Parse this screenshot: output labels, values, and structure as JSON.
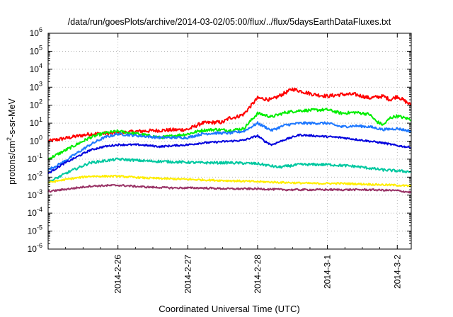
{
  "chart_data": {
    "type": "line",
    "title": "/data/run/goesPlots/archive/2014-03-02/05:00/flux/../flux/5daysEarthDataFluxes.txt",
    "xlabel": "Coordinated Universal Time (UTC)",
    "ylabel": {
      "base": "protons/cm",
      "sup": "2",
      "rest": "-s-sr-MeV"
    },
    "xlim": [
      0,
      5.2
    ],
    "ylim_exponents": [
      -6,
      6
    ],
    "y_scale": "log",
    "grid": true,
    "x_ticks": [
      {
        "value": 1,
        "label": "2014-2-26"
      },
      {
        "value": 2,
        "label": "2014-2-27"
      },
      {
        "value": 3,
        "label": "2014-2-28"
      },
      {
        "value": 4,
        "label": "2014-3-1"
      },
      {
        "value": 5,
        "label": "2014-3-2"
      }
    ],
    "y_ticks": [
      {
        "base": "10",
        "exp": "6",
        "value": 6
      },
      {
        "base": "10",
        "exp": "5",
        "value": 5
      },
      {
        "base": "10",
        "exp": "4",
        "value": 4
      },
      {
        "base": "10",
        "exp": "3",
        "value": 3
      },
      {
        "base": "10",
        "exp": "2",
        "value": 2
      },
      {
        "base": "10",
        "exp": "1",
        "value": 1
      },
      {
        "base": "10",
        "exp": "0",
        "value": 0
      },
      {
        "base": "10",
        "exp": "-1",
        "value": -1
      },
      {
        "base": "10",
        "exp": "-2",
        "value": -2
      },
      {
        "base": "10",
        "exp": "-3",
        "value": -3
      },
      {
        "base": "10",
        "exp": "-4",
        "value": -4
      },
      {
        "base": "10",
        "exp": "-5",
        "value": -5
      },
      {
        "base": "10",
        "exp": "-6",
        "value": -6
      }
    ],
    "series": [
      {
        "color": "#ff0000",
        "noise": 0.1,
        "x": [
          0,
          0.3,
          0.6,
          1.0,
          1.3,
          1.6,
          2.0,
          2.2,
          2.4,
          2.5,
          2.6,
          2.7,
          2.8,
          3.0,
          3.2,
          3.4,
          3.5,
          3.8,
          4.0,
          4.2,
          4.4,
          4.6,
          4.8,
          4.9,
          5.0,
          5.2
        ],
        "y": [
          0.0,
          0.2,
          0.4,
          0.45,
          0.55,
          0.6,
          0.65,
          1.0,
          1.05,
          1.05,
          1.3,
          1.35,
          1.5,
          2.4,
          2.3,
          2.7,
          2.9,
          2.6,
          2.5,
          2.6,
          2.6,
          2.4,
          2.5,
          2.3,
          2.5,
          2.0
        ]
      },
      {
        "color": "#00ee00",
        "noise": 0.08,
        "x": [
          0,
          0.2,
          0.4,
          0.6,
          0.8,
          1.0,
          1.3,
          1.6,
          2.0,
          2.2,
          2.4,
          2.6,
          2.8,
          3.0,
          3.2,
          3.4,
          3.6,
          4.0,
          4.2,
          4.4,
          4.6,
          4.7,
          4.8,
          4.9,
          5.0,
          5.2
        ],
        "y": [
          -1.0,
          -0.6,
          -0.2,
          0.2,
          0.45,
          0.55,
          0.4,
          0.2,
          0.4,
          0.6,
          0.65,
          0.6,
          0.7,
          1.55,
          1.35,
          1.6,
          1.7,
          1.75,
          1.55,
          1.6,
          1.5,
          1.1,
          0.9,
          1.3,
          1.4,
          1.2
        ]
      },
      {
        "color": "#1e78ff",
        "noise": 0.07,
        "x": [
          0,
          0.2,
          0.4,
          0.6,
          0.8,
          1.0,
          1.3,
          1.6,
          2.0,
          2.2,
          2.4,
          2.6,
          2.8,
          3.0,
          3.2,
          3.4,
          3.6,
          4.0,
          4.2,
          4.4,
          4.6,
          4.8,
          5.0,
          5.2
        ],
        "y": [
          -1.6,
          -1.2,
          -0.7,
          -0.2,
          0.2,
          0.4,
          0.3,
          0.2,
          0.2,
          0.4,
          0.45,
          0.45,
          0.55,
          1.0,
          0.6,
          0.9,
          1.0,
          1.0,
          0.8,
          0.85,
          0.8,
          0.65,
          0.7,
          0.55
        ]
      },
      {
        "color": "#0000dd",
        "noise": 0.05,
        "x": [
          0,
          0.2,
          0.4,
          0.6,
          0.8,
          1.0,
          1.3,
          1.6,
          2.0,
          2.2,
          2.4,
          2.6,
          2.8,
          3.0,
          3.1,
          3.2,
          3.4,
          3.6,
          4.0,
          4.2,
          4.4,
          4.6,
          4.8,
          5.0,
          5.2
        ],
        "y": [
          -1.8,
          -1.3,
          -0.9,
          -0.5,
          -0.3,
          -0.2,
          -0.2,
          -0.3,
          -0.2,
          -0.1,
          -0.05,
          0.0,
          0.05,
          0.3,
          0.0,
          -0.2,
          0.1,
          0.35,
          0.25,
          0.2,
          0.1,
          0.0,
          -0.1,
          -0.25,
          -0.35
        ]
      },
      {
        "color": "#00c8a0",
        "noise": 0.07,
        "x": [
          0,
          0.3,
          0.6,
          1.0,
          1.4,
          1.8,
          2.2,
          2.6,
          3.0,
          3.3,
          3.6,
          4.0,
          4.4,
          4.8,
          5.2
        ],
        "y": [
          -2.3,
          -1.7,
          -1.2,
          -1.0,
          -1.1,
          -1.15,
          -1.2,
          -1.2,
          -1.25,
          -1.45,
          -1.3,
          -1.3,
          -1.4,
          -1.6,
          -1.7
        ]
      },
      {
        "color": "#ffee00",
        "noise": 0.05,
        "x": [
          0,
          0.3,
          0.6,
          1.0,
          1.4,
          1.8,
          2.2,
          2.6,
          3.0,
          3.4,
          3.8,
          4.2,
          4.6,
          5.0,
          5.2
        ],
        "y": [
          -2.3,
          -2.1,
          -1.95,
          -1.95,
          -2.05,
          -2.1,
          -2.15,
          -2.2,
          -2.25,
          -2.3,
          -2.35,
          -2.35,
          -2.4,
          -2.45,
          -2.5
        ]
      },
      {
        "color": "#993366",
        "noise": 0.05,
        "x": [
          0,
          0.3,
          0.6,
          1.0,
          1.4,
          1.8,
          2.2,
          2.6,
          3.0,
          3.4,
          3.8,
          4.2,
          4.6,
          5.0,
          5.2
        ],
        "y": [
          -2.8,
          -2.65,
          -2.5,
          -2.45,
          -2.55,
          -2.6,
          -2.6,
          -2.65,
          -2.65,
          -2.7,
          -2.7,
          -2.7,
          -2.7,
          -2.75,
          -2.85
        ]
      }
    ]
  }
}
